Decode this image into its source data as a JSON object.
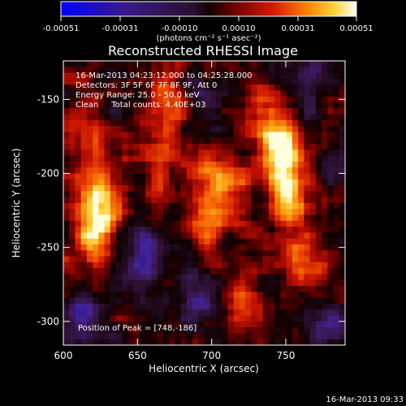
{
  "chart_data": {
    "type": "heatmap",
    "title": "Reconstructed RHESSI Image",
    "xlabel": "Heliocentric X (arcsec)",
    "ylabel": "Heliocentric Y (arcsec)",
    "xlim": [
      600,
      790
    ],
    "ylim": [
      -316,
      -124
    ],
    "xticks": [
      600,
      650,
      700,
      750
    ],
    "yticks": [
      -150,
      -200,
      -250,
      -300
    ],
    "colorbar": {
      "ticks": [
        "-0.00051",
        "-0.00031",
        "-0.00010",
        "0.00010",
        "0.00031",
        "0.00051"
      ],
      "range": [
        -0.00051,
        0.00051
      ],
      "unit_label": "(photons cm⁻² s⁻¹ asec⁻²)"
    },
    "annotations": [
      "16-Mar-2013 04:23:12.000 to 04:25:28.000",
      "Detectors: 3F 5F 6F 7F 8F 9F, Att 0",
      "Energy Range: 25.0 - 50.0 keV",
      "Clean     Total counts: 4.40E+03"
    ],
    "peak_label": "Position of Peak = [748,-186]",
    "peak": [
      748,
      -186
    ],
    "bright_regions": [
      {
        "x": 748,
        "y": -190,
        "level": 1.0
      },
      {
        "x": 752,
        "y": -220,
        "level": 0.7
      },
      {
        "x": 740,
        "y": -165,
        "level": 0.6
      },
      {
        "x": 705,
        "y": -205,
        "level": 0.75
      },
      {
        "x": 698,
        "y": -235,
        "level": 0.6
      },
      {
        "x": 675,
        "y": -150,
        "level": 0.65
      },
      {
        "x": 665,
        "y": -190,
        "level": 0.55
      },
      {
        "x": 625,
        "y": -215,
        "level": 0.7
      },
      {
        "x": 622,
        "y": -240,
        "level": 0.8
      },
      {
        "x": 612,
        "y": -175,
        "level": 0.5
      },
      {
        "x": 760,
        "y": -260,
        "level": 0.5
      },
      {
        "x": 720,
        "y": -290,
        "level": 0.45
      }
    ],
    "dim_regions": [
      {
        "x": 690,
        "y": -150,
        "level": -0.6
      },
      {
        "x": 652,
        "y": -255,
        "level": -0.7
      },
      {
        "x": 690,
        "y": -280,
        "level": -0.55
      },
      {
        "x": 612,
        "y": -300,
        "level": -0.6
      },
      {
        "x": 780,
        "y": -300,
        "level": -0.5
      },
      {
        "x": 765,
        "y": -135,
        "level": -0.4
      }
    ]
  },
  "footer_timestamp": "16-Mar-2013 09:33"
}
